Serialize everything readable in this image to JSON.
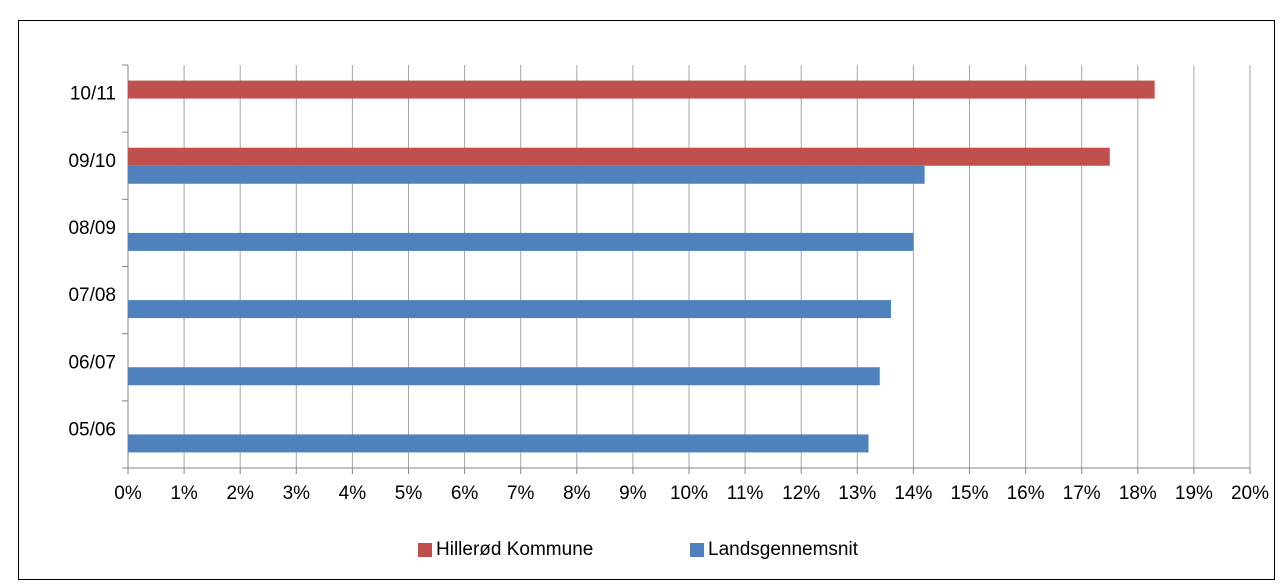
{
  "chart_data": {
    "type": "hbar",
    "categories": [
      "05/06",
      "06/07",
      "07/08",
      "08/09",
      "09/10",
      "10/11"
    ],
    "series": [
      {
        "name": "Hillerød Kommune",
        "color": "#c0504d",
        "values": [
          null,
          null,
          null,
          null,
          17.5,
          18.3
        ]
      },
      {
        "name": "Landsgennemsnit",
        "color": "#4f81bd",
        "values": [
          13.2,
          13.4,
          13.6,
          14.0,
          14.2,
          null
        ]
      }
    ],
    "xlim": [
      0,
      20
    ],
    "xticks": [
      {
        "value": 0,
        "label": "0%"
      },
      {
        "value": 1,
        "label": "1%"
      },
      {
        "value": 2,
        "label": "2%"
      },
      {
        "value": 3,
        "label": "3%"
      },
      {
        "value": 4,
        "label": "4%"
      },
      {
        "value": 5,
        "label": "5%"
      },
      {
        "value": 6,
        "label": "6%"
      },
      {
        "value": 7,
        "label": "7%"
      },
      {
        "value": 8,
        "label": "8%"
      },
      {
        "value": 9,
        "label": "9%"
      },
      {
        "value": 10,
        "label": "10%"
      },
      {
        "value": 11,
        "label": "11%"
      },
      {
        "value": 12,
        "label": "12%"
      },
      {
        "value": 13,
        "label": "13%"
      },
      {
        "value": 14,
        "label": "14%"
      },
      {
        "value": 15,
        "label": "15%"
      },
      {
        "value": 16,
        "label": "16%"
      },
      {
        "value": 17,
        "label": "17%"
      },
      {
        "value": 18,
        "label": "18%"
      },
      {
        "value": 19,
        "label": "19%"
      },
      {
        "value": 20,
        "label": "20%"
      }
    ],
    "grid": true,
    "legend": "bottom"
  }
}
